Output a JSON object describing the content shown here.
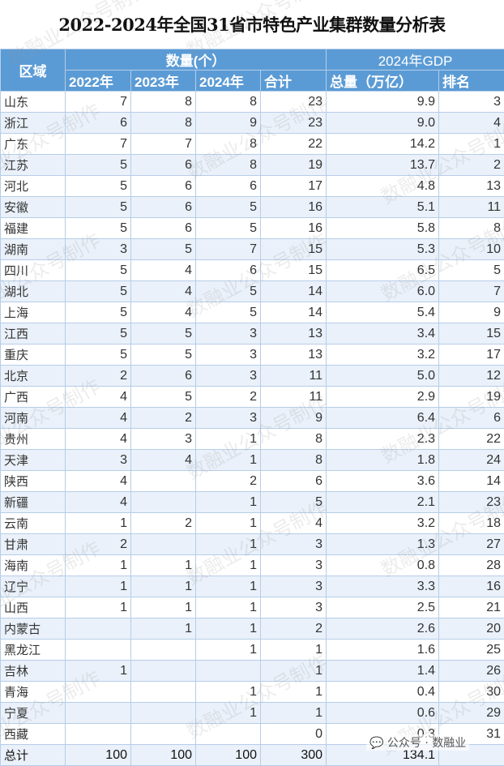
{
  "title": "2022-2024年全国31省市特色产业集群数量分析表",
  "header": {
    "region": "区域",
    "count_group": "数量(个）",
    "gdp_group": "2024年GDP",
    "cols": [
      "2022年",
      "2023年",
      "2024年",
      "合计",
      "总量（万亿）",
      "排名"
    ]
  },
  "rows": [
    [
      "山东",
      "7",
      "8",
      "8",
      "23",
      "9.9",
      "3"
    ],
    [
      "浙江",
      "6",
      "8",
      "9",
      "23",
      "9.0",
      "4"
    ],
    [
      "广东",
      "7",
      "7",
      "8",
      "22",
      "14.2",
      "1"
    ],
    [
      "江苏",
      "5",
      "6",
      "8",
      "19",
      "13.7",
      "2"
    ],
    [
      "河北",
      "5",
      "6",
      "6",
      "17",
      "4.8",
      "13"
    ],
    [
      "安徽",
      "5",
      "6",
      "5",
      "16",
      "5.1",
      "11"
    ],
    [
      "福建",
      "5",
      "6",
      "5",
      "16",
      "5.8",
      "8"
    ],
    [
      "湖南",
      "3",
      "5",
      "7",
      "15",
      "5.3",
      "10"
    ],
    [
      "四川",
      "5",
      "4",
      "6",
      "15",
      "6.5",
      "5"
    ],
    [
      "湖北",
      "5",
      "4",
      "5",
      "14",
      "6.0",
      "7"
    ],
    [
      "上海",
      "5",
      "4",
      "5",
      "14",
      "5.4",
      "9"
    ],
    [
      "江西",
      "5",
      "5",
      "3",
      "13",
      "3.4",
      "15"
    ],
    [
      "重庆",
      "5",
      "5",
      "3",
      "13",
      "3.2",
      "17"
    ],
    [
      "北京",
      "2",
      "6",
      "3",
      "11",
      "5.0",
      "12"
    ],
    [
      "广西",
      "4",
      "5",
      "2",
      "11",
      "2.9",
      "19"
    ],
    [
      "河南",
      "4",
      "2",
      "3",
      "9",
      "6.4",
      "6"
    ],
    [
      "贵州",
      "4",
      "3",
      "1",
      "8",
      "2.3",
      "22"
    ],
    [
      "天津",
      "3",
      "4",
      "1",
      "8",
      "1.8",
      "24"
    ],
    [
      "陕西",
      "4",
      "",
      "2",
      "6",
      "3.6",
      "14"
    ],
    [
      "新疆",
      "4",
      "",
      "1",
      "5",
      "2.1",
      "23"
    ],
    [
      "云南",
      "1",
      "2",
      "1",
      "4",
      "3.2",
      "18"
    ],
    [
      "甘肃",
      "2",
      "",
      "1",
      "3",
      "1.3",
      "27"
    ],
    [
      "海南",
      "1",
      "1",
      "1",
      "3",
      "0.8",
      "28"
    ],
    [
      "辽宁",
      "1",
      "1",
      "1",
      "3",
      "3.3",
      "16"
    ],
    [
      "山西",
      "1",
      "1",
      "1",
      "3",
      "2.5",
      "21"
    ],
    [
      "内蒙古",
      "",
      "1",
      "1",
      "2",
      "2.6",
      "20"
    ],
    [
      "黑龙江",
      "",
      "",
      "1",
      "1",
      "1.6",
      "25"
    ],
    [
      "吉林",
      "1",
      "",
      "",
      "1",
      "1.4",
      "26"
    ],
    [
      "青海",
      "",
      "",
      "1",
      "1",
      "0.4",
      "30"
    ],
    [
      "宁夏",
      "",
      "",
      "1",
      "1",
      "0.6",
      "29"
    ],
    [
      "西藏",
      "",
      "",
      "",
      "0",
      "0.3",
      "31"
    ]
  ],
  "total": [
    "总计",
    "100",
    "100",
    "100",
    "300",
    "134.1",
    ""
  ],
  "watermark": "数融业公众号制作",
  "wechat_badge": "公众号 · 数融业",
  "colors": {
    "header_bg": "#5b9bd5",
    "row_alt": "#eaf1fa",
    "border": "#b6cde8"
  }
}
